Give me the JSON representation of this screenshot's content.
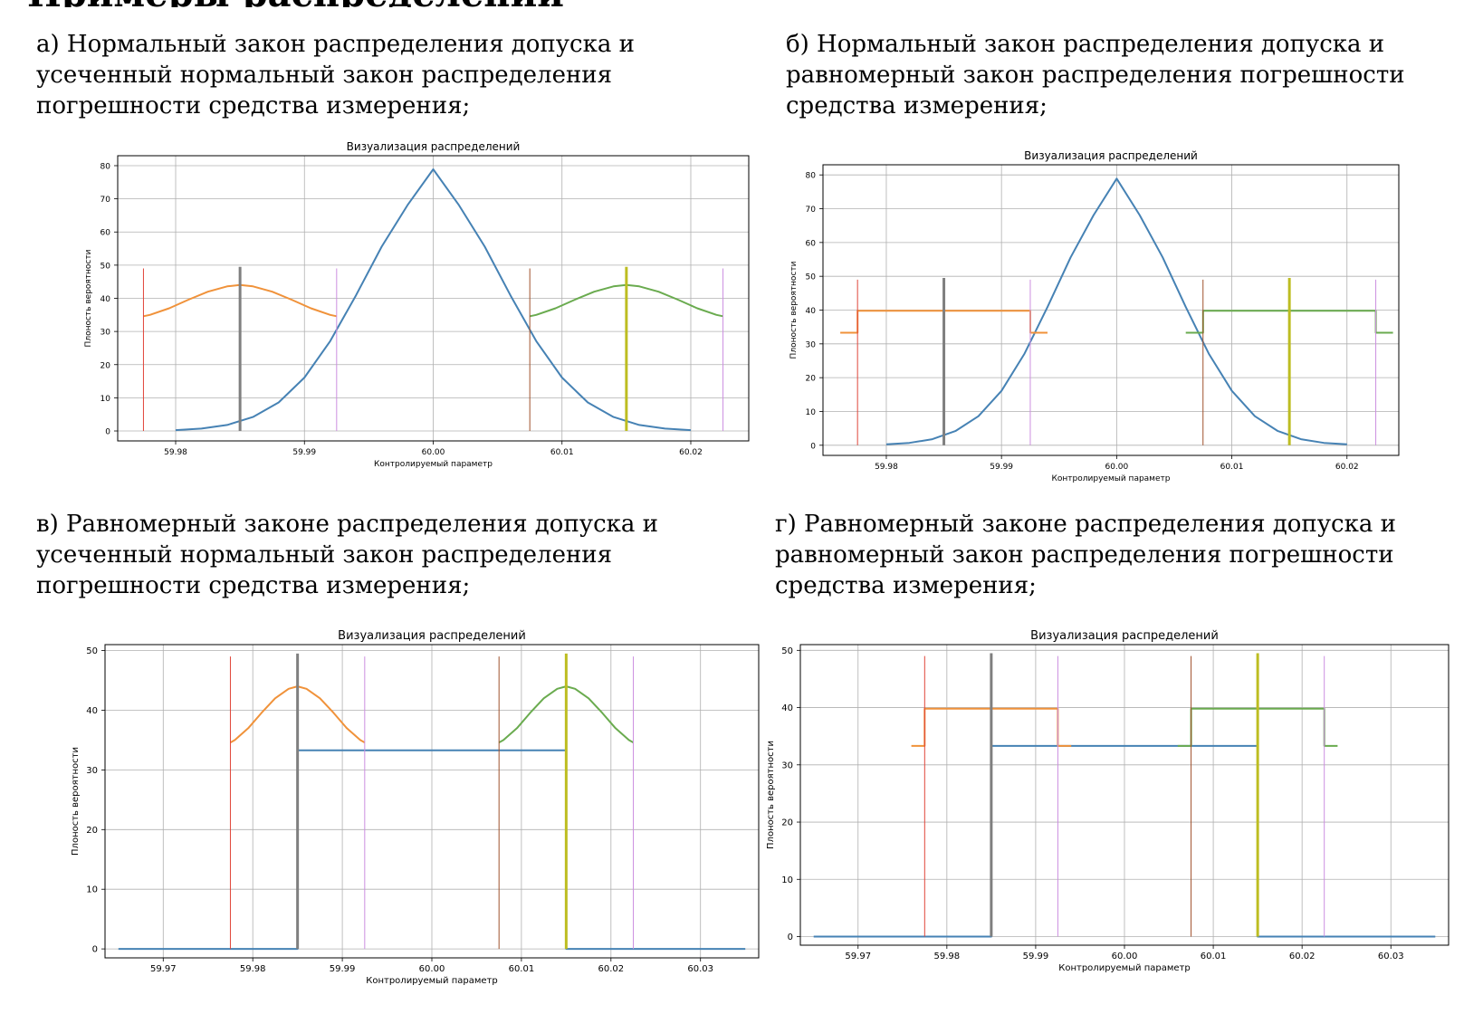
{
  "heading_cut": "Примеры распределений",
  "captions": [
    "а) Нормальный закон распределения допуска и усеченный нормальный закон распределения погрешности средства измерения;",
    "б) Нормальный закон распределения допуска и равномерный закон распределения погрешности средства измерения;",
    "в) Равномерный законе распределения допуска и усеченный нормальный закон распределения погрешности средства измерения;",
    "г) Равномерный законе распределения допуска и равномерный закон распределения погрешности средства измерения;"
  ],
  "colors": {
    "blue": "#4682b4",
    "orange": "#f0923a",
    "green": "#6aab4f",
    "red": "#e0453a",
    "brown": "#a0522d",
    "violet": "#cc8fe0",
    "gray": "#7f7f7f",
    "olive": "#bdbd22",
    "grid": "#b0b0b0"
  },
  "chart_data": [
    {
      "type": "line",
      "title": "Визуализация распределений",
      "xlabel": "Контролируемый параметр",
      "ylabel": "Плоность вероятности",
      "xlim": [
        59.9755,
        60.0245
      ],
      "ylim": [
        -3,
        83
      ],
      "xticks": [
        "59.98",
        "59.99",
        "60.00",
        "60.01",
        "60.02"
      ],
      "yticks": [
        "0",
        "10",
        "20",
        "30",
        "40",
        "50",
        "60",
        "70",
        "80"
      ],
      "series": [
        {
          "color": "blue",
          "x": [
            59.98,
            59.982,
            59.984,
            59.986,
            59.988,
            59.99,
            59.992,
            59.994,
            59.996,
            59.998,
            60.0,
            60.002,
            60.004,
            60.006,
            60.008,
            60.01,
            60.012,
            60.014,
            60.016,
            60.018,
            60.02
          ],
          "y": [
            0.26,
            0.7,
            1.8,
            4.2,
            8.6,
            16.1,
            27.1,
            40.9,
            55.6,
            68.1,
            78.9,
            68.1,
            55.6,
            40.9,
            27.1,
            16.1,
            8.6,
            4.2,
            1.8,
            0.7,
            0.26
          ]
        },
        {
          "color": "orange",
          "x": [
            59.9775,
            59.978,
            59.9795,
            59.981,
            59.9825,
            59.984,
            59.985,
            59.986,
            59.9875,
            59.989,
            59.9905,
            59.992,
            59.9925
          ],
          "y": [
            34.6,
            35.0,
            37.0,
            39.6,
            42.0,
            43.6,
            44.0,
            43.6,
            42.0,
            39.6,
            37.0,
            35.0,
            34.6
          ]
        },
        {
          "color": "green",
          "x": [
            60.0075,
            60.008,
            60.0095,
            60.011,
            60.0125,
            60.014,
            60.015,
            60.016,
            60.0175,
            60.019,
            60.0205,
            60.022,
            60.0225
          ],
          "y": [
            34.6,
            35.0,
            37.0,
            39.6,
            42.0,
            43.6,
            44.0,
            43.6,
            42.0,
            39.6,
            37.0,
            35.0,
            34.6
          ]
        }
      ],
      "vlines": [
        {
          "x": 59.9775,
          "y": [
            0,
            49
          ],
          "color": "red",
          "width": 1
        },
        {
          "x": 59.985,
          "y": [
            0,
            49.5
          ],
          "color": "gray",
          "width": 3
        },
        {
          "x": 59.9925,
          "y": [
            0,
            49
          ],
          "color": "violet",
          "width": 1
        },
        {
          "x": 60.0075,
          "y": [
            0,
            49
          ],
          "color": "brown",
          "width": 1
        },
        {
          "x": 60.015,
          "y": [
            0,
            49.5
          ],
          "color": "olive",
          "width": 3
        },
        {
          "x": 60.0225,
          "y": [
            0,
            49
          ],
          "color": "violet",
          "width": 1
        }
      ]
    },
    {
      "type": "line",
      "title": "Визуализация распределений",
      "xlabel": "Контролируемый параметр",
      "ylabel": "Плоность вероятности",
      "xlim": [
        59.9745,
        60.0245
      ],
      "ylim": [
        -3,
        83
      ],
      "xticks": [
        "59.98",
        "59.99",
        "60.00",
        "60.01",
        "60.02"
      ],
      "yticks": [
        "0",
        "10",
        "20",
        "30",
        "40",
        "50",
        "60",
        "70",
        "80"
      ],
      "series": [
        {
          "color": "blue",
          "x": [
            59.98,
            59.982,
            59.984,
            59.986,
            59.988,
            59.99,
            59.992,
            59.994,
            59.996,
            59.998,
            60.0,
            60.002,
            60.004,
            60.006,
            60.008,
            60.01,
            60.012,
            60.014,
            60.016,
            60.018,
            60.02
          ],
          "y": [
            0.26,
            0.7,
            1.8,
            4.2,
            8.6,
            16.1,
            27.1,
            40.9,
            55.6,
            68.1,
            78.9,
            68.1,
            55.6,
            40.9,
            27.1,
            16.1,
            8.6,
            4.2,
            1.8,
            0.7,
            0.26
          ]
        },
        {
          "color": "orange",
          "x": [
            59.976,
            59.9775,
            59.9775,
            59.9925,
            59.9925,
            59.994
          ],
          "y": [
            33.3,
            33.3,
            39.8,
            39.8,
            33.3,
            33.3
          ]
        },
        {
          "color": "green",
          "x": [
            60.006,
            60.0075,
            60.0075,
            60.0225,
            60.0225,
            60.024
          ],
          "y": [
            33.3,
            33.3,
            39.8,
            39.8,
            33.3,
            33.3
          ]
        }
      ],
      "vlines": [
        {
          "x": 59.9775,
          "y": [
            0,
            49
          ],
          "color": "red",
          "width": 1
        },
        {
          "x": 59.985,
          "y": [
            0,
            49.5
          ],
          "color": "gray",
          "width": 3
        },
        {
          "x": 59.9925,
          "y": [
            0,
            49
          ],
          "color": "violet",
          "width": 1
        },
        {
          "x": 60.0075,
          "y": [
            0,
            49
          ],
          "color": "brown",
          "width": 1
        },
        {
          "x": 60.015,
          "y": [
            0,
            49.5
          ],
          "color": "olive",
          "width": 3
        },
        {
          "x": 60.0225,
          "y": [
            0,
            49
          ],
          "color": "violet",
          "width": 1
        }
      ]
    },
    {
      "type": "line",
      "title": "Визуализация распределений",
      "xlabel": "Контролируемый параметр",
      "ylabel": "Плоность вероятности",
      "xlim": [
        59.9635,
        60.0365
      ],
      "ylim": [
        -1.5,
        51
      ],
      "xticks": [
        "59.97",
        "59.98",
        "59.99",
        "60.00",
        "60.01",
        "60.02",
        "60.03"
      ],
      "yticks": [
        "0",
        "10",
        "20",
        "30",
        "40",
        "50"
      ],
      "series": [
        {
          "color": "blue",
          "x": [
            59.965,
            59.985,
            59.985,
            60.015,
            60.015,
            60.035
          ],
          "y": [
            0,
            0,
            33.3,
            33.3,
            0,
            0
          ]
        },
        {
          "color": "orange",
          "x": [
            59.9775,
            59.978,
            59.9795,
            59.981,
            59.9825,
            59.984,
            59.985,
            59.986,
            59.9875,
            59.989,
            59.9905,
            59.992,
            59.9925
          ],
          "y": [
            34.6,
            35.0,
            37.0,
            39.6,
            42.0,
            43.6,
            44.0,
            43.6,
            42.0,
            39.6,
            37.0,
            35.0,
            34.6
          ]
        },
        {
          "color": "green",
          "x": [
            60.0075,
            60.008,
            60.0095,
            60.011,
            60.0125,
            60.014,
            60.015,
            60.016,
            60.0175,
            60.019,
            60.0205,
            60.022,
            60.0225
          ],
          "y": [
            34.6,
            35.0,
            37.0,
            39.6,
            42.0,
            43.6,
            44.0,
            43.6,
            42.0,
            39.6,
            37.0,
            35.0,
            34.6
          ]
        }
      ],
      "vlines": [
        {
          "x": 59.9775,
          "y": [
            0,
            49
          ],
          "color": "red",
          "width": 1
        },
        {
          "x": 59.985,
          "y": [
            0,
            49.5
          ],
          "color": "gray",
          "width": 3
        },
        {
          "x": 59.9925,
          "y": [
            0,
            49
          ],
          "color": "violet",
          "width": 1
        },
        {
          "x": 60.0075,
          "y": [
            0,
            49
          ],
          "color": "brown",
          "width": 1
        },
        {
          "x": 60.015,
          "y": [
            0,
            49.5
          ],
          "color": "olive",
          "width": 3
        },
        {
          "x": 60.0225,
          "y": [
            0,
            49
          ],
          "color": "violet",
          "width": 1
        }
      ]
    },
    {
      "type": "line",
      "title": "Визуализация распределений",
      "xlabel": "Контролируемый параметр",
      "ylabel": "Плоность вероятности",
      "xlim": [
        59.9635,
        60.0365
      ],
      "ylim": [
        -1.5,
        51
      ],
      "xticks": [
        "59.97",
        "59.98",
        "59.99",
        "60.00",
        "60.01",
        "60.02",
        "60.03"
      ],
      "yticks": [
        "0",
        "10",
        "20",
        "30",
        "40",
        "50"
      ],
      "series": [
        {
          "color": "blue",
          "x": [
            59.965,
            59.985,
            59.985,
            60.015,
            60.015,
            60.035
          ],
          "y": [
            0,
            0,
            33.3,
            33.3,
            0,
            0
          ]
        },
        {
          "color": "orange",
          "x": [
            59.976,
            59.9775,
            59.9775,
            59.9925,
            59.9925,
            59.994
          ],
          "y": [
            33.3,
            33.3,
            39.8,
            39.8,
            33.3,
            33.3
          ]
        },
        {
          "color": "green",
          "x": [
            60.006,
            60.0075,
            60.0075,
            60.0225,
            60.0225,
            60.024
          ],
          "y": [
            33.3,
            33.3,
            39.8,
            39.8,
            33.3,
            33.3
          ]
        }
      ],
      "vlines": [
        {
          "x": 59.9775,
          "y": [
            0,
            49
          ],
          "color": "red",
          "width": 1
        },
        {
          "x": 59.985,
          "y": [
            0,
            49.5
          ],
          "color": "gray",
          "width": 3
        },
        {
          "x": 59.9925,
          "y": [
            0,
            49
          ],
          "color": "violet",
          "width": 1
        },
        {
          "x": 60.0075,
          "y": [
            0,
            49
          ],
          "color": "brown",
          "width": 1
        },
        {
          "x": 60.015,
          "y": [
            0,
            49.5
          ],
          "color": "olive",
          "width": 3
        },
        {
          "x": 60.0225,
          "y": [
            0,
            49
          ],
          "color": "violet",
          "width": 1
        }
      ]
    }
  ]
}
